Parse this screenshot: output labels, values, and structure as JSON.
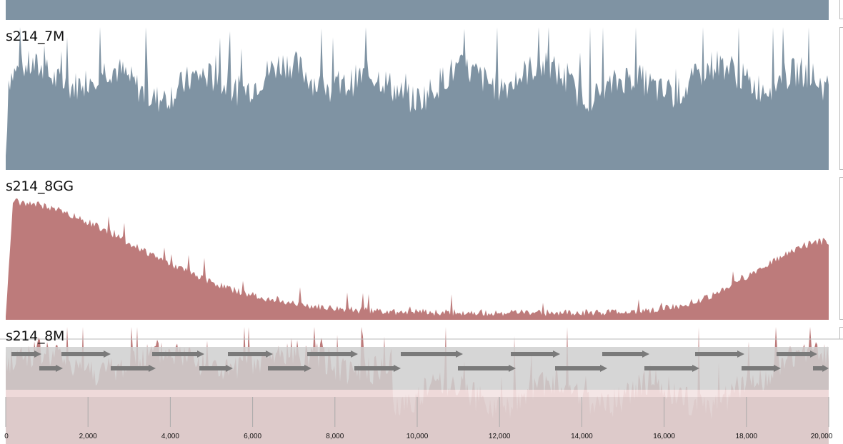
{
  "tracks": [
    {
      "id": "top",
      "label": "",
      "color": "#7f93a3"
    },
    {
      "id": "s214_7M",
      "label": "s214_7M",
      "color": "#7f93a3"
    },
    {
      "id": "s214_8GG",
      "label": "s214_8GG",
      "color": "#bd7b7b"
    },
    {
      "id": "s214_8M",
      "label": "s214_8M",
      "color": "#bd7b7b"
    }
  ],
  "axis": {
    "min": 0,
    "max": 20000,
    "ticks": [
      "0",
      "2,000",
      "4,000",
      "6,000",
      "8,000",
      "10,000",
      "12,000",
      "14,000",
      "16,000",
      "18,000",
      "20,000"
    ]
  },
  "colors": {
    "gene_row_bg": "#d4d4d4",
    "gene_arrow": "#7a7a7a",
    "ruler_bg": "#e0d0d0",
    "ruler_line": "#aaaaaa"
  }
}
